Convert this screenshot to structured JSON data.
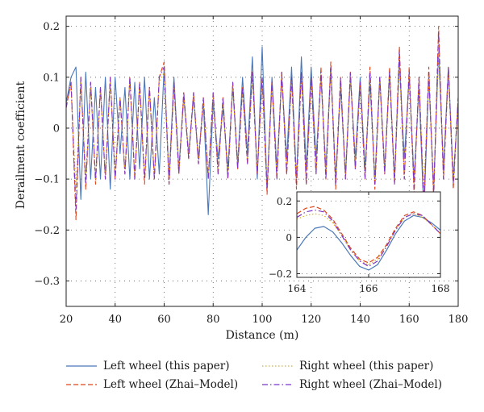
{
  "chart_data": [
    {
      "type": "line",
      "title": "",
      "xlabel": "Distance (m)",
      "ylabel": "Derailment coefficient",
      "xlim": [
        20,
        180
      ],
      "ylim": [
        -0.35,
        0.22
      ],
      "xticks": [
        20,
        40,
        60,
        80,
        100,
        120,
        140,
        160,
        180
      ],
      "xtick_labels": [
        "20",
        "40",
        "60",
        "80",
        "100",
        "120",
        "140",
        "160",
        "180"
      ],
      "yticks": [
        0.2,
        0.1,
        0,
        -0.1,
        -0.2,
        -0.3
      ],
      "ytick_labels": [
        "0.2",
        "0.1",
        "0",
        "−0.1",
        "−0.2",
        "−0.3"
      ],
      "grid": "dotted",
      "legend_position": "bottom",
      "series": [
        {
          "name": "Left wheel (this paper)",
          "color": "#4a78b8",
          "style": "solid",
          "x": [
            20,
            22,
            24,
            26,
            28,
            30,
            32,
            34,
            36,
            38,
            40,
            42,
            44,
            46,
            48,
            50,
            52,
            54,
            56,
            58,
            60,
            62,
            64,
            66,
            68,
            70,
            72,
            74,
            76,
            78,
            80,
            82,
            84,
            86,
            88,
            90,
            92,
            94,
            96,
            98,
            100,
            102,
            104,
            106,
            108,
            110,
            112,
            114,
            116,
            118,
            120,
            122,
            124,
            126,
            128,
            130,
            132,
            134,
            136,
            138,
            140,
            142,
            144,
            146,
            148,
            150,
            152,
            154,
            156,
            158,
            160,
            162,
            164,
            166,
            168,
            170,
            172,
            174,
            176,
            178,
            180
          ],
          "y": [
            0.05,
            0.1,
            0.12,
            -0.14,
            0.11,
            -0.1,
            0.08,
            -0.1,
            0.1,
            -0.12,
            0.1,
            -0.05,
            0.08,
            -0.1,
            0.09,
            -0.08,
            0.1,
            -0.1,
            0.06,
            -0.09,
            0.12,
            -0.1,
            0.1,
            -0.08,
            0.06,
            -0.05,
            0.06,
            -0.06,
            0.05,
            -0.17,
            0.05,
            -0.06,
            0.04,
            -0.08,
            0.08,
            -0.07,
            0.1,
            -0.05,
            0.14,
            -0.1,
            0.16,
            -0.12,
            0.1,
            -0.08,
            0.1,
            -0.06,
            0.12,
            -0.1,
            0.14,
            -0.08,
            0.12,
            -0.06,
            0.1,
            -0.08,
            0.12,
            -0.1,
            0.08,
            -0.09,
            0.1,
            -0.06,
            0.1,
            -0.08,
            0.09,
            -0.1,
            0.1,
            -0.08,
            0.11,
            -0.1,
            0.13,
            -0.06,
            0.1,
            -0.1,
            0.08,
            -0.17,
            0.1,
            -0.12,
            0.15,
            -0.08,
            0.12,
            -0.1,
            0.05
          ]
        },
        {
          "name": "Left wheel (Zhai–Model)",
          "color": "#e0451a",
          "style": "dashed",
          "x": [
            20,
            22,
            24,
            26,
            28,
            30,
            32,
            34,
            36,
            38,
            40,
            42,
            44,
            46,
            48,
            50,
            52,
            54,
            56,
            58,
            60,
            62,
            64,
            66,
            68,
            70,
            72,
            74,
            76,
            78,
            80,
            82,
            84,
            86,
            88,
            90,
            92,
            94,
            96,
            98,
            100,
            102,
            104,
            106,
            108,
            110,
            112,
            114,
            116,
            118,
            120,
            122,
            124,
            126,
            128,
            130,
            132,
            134,
            136,
            138,
            140,
            142,
            144,
            146,
            148,
            150,
            152,
            154,
            156,
            158,
            160,
            162,
            164,
            166,
            168,
            170,
            172,
            174,
            176,
            178,
            180
          ],
          "y": [
            0.04,
            0.09,
            -0.18,
            0.1,
            -0.12,
            0.09,
            -0.11,
            0.08,
            -0.1,
            0.1,
            -0.1,
            0.06,
            -0.09,
            0.1,
            -0.1,
            0.09,
            -0.11,
            0.08,
            -0.1,
            0.1,
            0.13,
            -0.11,
            0.09,
            -0.09,
            0.07,
            -0.06,
            0.07,
            -0.07,
            0.06,
            -0.1,
            0.07,
            -0.09,
            0.06,
            -0.1,
            0.09,
            -0.08,
            0.08,
            -0.07,
            0.11,
            -0.09,
            0.1,
            -0.13,
            0.09,
            -0.1,
            0.11,
            -0.09,
            0.1,
            -0.12,
            0.11,
            -0.11,
            0.1,
            -0.09,
            0.12,
            -0.1,
            0.13,
            -0.12,
            0.1,
            -0.1,
            0.11,
            -0.08,
            0.09,
            -0.1,
            0.12,
            -0.12,
            0.1,
            -0.09,
            0.12,
            -0.11,
            0.16,
            -0.1,
            0.12,
            -0.13,
            0.1,
            -0.16,
            0.12,
            -0.14,
            0.2,
            -0.1,
            0.12,
            -0.12,
            0.06
          ]
        },
        {
          "name": "Right wheel (this paper)",
          "color": "#d9b21f",
          "style": "dotted",
          "x": [
            20,
            22,
            24,
            26,
            28,
            30,
            32,
            34,
            36,
            38,
            40,
            42,
            44,
            46,
            48,
            50,
            52,
            54,
            56,
            58,
            60,
            62,
            64,
            66,
            68,
            70,
            72,
            74,
            76,
            78,
            80,
            82,
            84,
            86,
            88,
            90,
            92,
            94,
            96,
            98,
            100,
            102,
            104,
            106,
            108,
            110,
            112,
            114,
            116,
            118,
            120,
            122,
            124,
            126,
            128,
            130,
            132,
            134,
            136,
            138,
            140,
            142,
            144,
            146,
            148,
            150,
            152,
            154,
            156,
            158,
            160,
            162,
            164,
            166,
            168,
            170,
            172,
            174,
            176,
            178,
            180
          ],
          "y": [
            0.05,
            0.08,
            -0.12,
            0.1,
            -0.1,
            0.08,
            -0.1,
            0.08,
            -0.09,
            0.09,
            -0.09,
            0.06,
            -0.08,
            0.09,
            -0.09,
            0.08,
            -0.1,
            0.07,
            -0.09,
            0.09,
            0.11,
            -0.1,
            0.08,
            -0.08,
            0.06,
            -0.05,
            0.06,
            -0.06,
            0.05,
            -0.09,
            0.06,
            -0.08,
            0.05,
            -0.09,
            0.08,
            -0.07,
            0.07,
            -0.06,
            0.1,
            -0.08,
            0.09,
            -0.11,
            0.08,
            -0.09,
            0.1,
            -0.08,
            0.09,
            -0.1,
            0.1,
            -0.1,
            0.09,
            -0.08,
            0.1,
            -0.09,
            0.11,
            -0.1,
            0.09,
            -0.09,
            0.1,
            -0.07,
            0.08,
            -0.09,
            0.1,
            -0.1,
            0.09,
            -0.08,
            0.1,
            -0.1,
            0.12,
            -0.09,
            0.1,
            -0.11,
            0.09,
            -0.12,
            0.1,
            -0.12,
            0.15,
            -0.09,
            0.1,
            -0.1,
            0.05
          ]
        },
        {
          "name": "Right wheel (Zhai–Model)",
          "color": "#7b35c9",
          "style": "dashdot",
          "x": [
            20,
            22,
            24,
            26,
            28,
            30,
            32,
            34,
            36,
            38,
            40,
            42,
            44,
            46,
            48,
            50,
            52,
            54,
            56,
            58,
            60,
            62,
            64,
            66,
            68,
            70,
            72,
            74,
            76,
            78,
            80,
            82,
            84,
            86,
            88,
            90,
            92,
            94,
            96,
            98,
            100,
            102,
            104,
            106,
            108,
            110,
            112,
            114,
            116,
            118,
            120,
            122,
            124,
            126,
            128,
            130,
            132,
            134,
            136,
            138,
            140,
            142,
            144,
            146,
            148,
            150,
            152,
            154,
            156,
            158,
            160,
            162,
            164,
            166,
            168,
            170,
            172,
            174,
            176,
            178,
            180
          ],
          "y": [
            0.04,
            0.09,
            -0.16,
            0.1,
            -0.11,
            0.09,
            -0.1,
            0.08,
            -0.1,
            0.1,
            -0.1,
            0.06,
            -0.09,
            0.1,
            -0.1,
            0.09,
            -0.1,
            0.08,
            -0.1,
            0.1,
            0.12,
            -0.11,
            0.09,
            -0.09,
            0.07,
            -0.06,
            0.07,
            -0.07,
            0.06,
            -0.1,
            0.07,
            -0.09,
            0.06,
            -0.1,
            0.09,
            -0.08,
            0.08,
            -0.07,
            0.11,
            -0.09,
            0.1,
            -0.12,
            0.09,
            -0.1,
            0.11,
            -0.09,
            0.1,
            -0.11,
            0.11,
            -0.11,
            0.1,
            -0.09,
            0.11,
            -0.1,
            0.12,
            -0.11,
            0.1,
            -0.1,
            0.11,
            -0.08,
            0.09,
            -0.1,
            0.11,
            -0.11,
            0.1,
            -0.09,
            0.11,
            -0.11,
            0.15,
            -0.1,
            0.11,
            -0.12,
            0.1,
            -0.15,
            0.11,
            -0.13,
            0.19,
            -0.1,
            0.12,
            -0.11,
            0.06
          ]
        }
      ]
    },
    {
      "type": "line",
      "title": "",
      "inset": true,
      "xlim": [
        164,
        168
      ],
      "ylim": [
        -0.22,
        0.25
      ],
      "xticks": [
        164,
        166,
        168
      ],
      "xtick_labels": [
        "164",
        "166",
        "168"
      ],
      "yticks": [
        0.2,
        0,
        -0.2
      ],
      "ytick_labels": [
        "0.2",
        "0",
        "−0.2"
      ],
      "grid": "dotted",
      "series": [
        {
          "name": "Left wheel (this paper)",
          "color": "#4a78b8",
          "style": "solid",
          "x": [
            164,
            164.25,
            164.5,
            164.75,
            165,
            165.25,
            165.5,
            165.75,
            166,
            166.25,
            166.5,
            166.75,
            167,
            167.25,
            167.5,
            167.75,
            168
          ],
          "y": [
            -0.07,
            0.0,
            0.05,
            0.06,
            0.03,
            -0.03,
            -0.1,
            -0.16,
            -0.18,
            -0.15,
            -0.07,
            0.02,
            0.09,
            0.12,
            0.11,
            0.08,
            0.04
          ]
        },
        {
          "name": "Left wheel (Zhai–Model)",
          "color": "#e0451a",
          "style": "dashed",
          "x": [
            164,
            164.25,
            164.5,
            164.75,
            165,
            165.25,
            165.5,
            165.75,
            166,
            166.25,
            166.5,
            166.75,
            167,
            167.25,
            167.5,
            167.75,
            168
          ],
          "y": [
            0.13,
            0.16,
            0.17,
            0.15,
            0.1,
            0.02,
            -0.06,
            -0.12,
            -0.14,
            -0.11,
            -0.04,
            0.05,
            0.12,
            0.14,
            0.12,
            0.07,
            0.02
          ]
        },
        {
          "name": "Right wheel (this paper)",
          "color": "#d9b21f",
          "style": "dotted",
          "x": [
            164,
            164.25,
            164.5,
            164.75,
            165,
            165.25,
            165.5,
            165.75,
            166,
            166.25,
            166.5,
            166.75,
            167,
            167.25,
            167.5,
            167.75,
            168
          ],
          "y": [
            0.1,
            0.12,
            0.13,
            0.12,
            0.08,
            0.01,
            -0.07,
            -0.13,
            -0.15,
            -0.12,
            -0.05,
            0.04,
            0.11,
            0.13,
            0.11,
            0.07,
            0.02
          ]
        },
        {
          "name": "Right wheel (Zhai–Model)",
          "color": "#7b35c9",
          "style": "dashdot",
          "x": [
            164,
            164.25,
            164.5,
            164.75,
            165,
            165.25,
            165.5,
            165.75,
            166,
            166.25,
            166.5,
            166.75,
            167,
            167.25,
            167.5,
            167.75,
            168
          ],
          "y": [
            0.11,
            0.14,
            0.15,
            0.14,
            0.09,
            0.01,
            -0.07,
            -0.13,
            -0.16,
            -0.13,
            -0.05,
            0.04,
            0.11,
            0.13,
            0.12,
            0.07,
            0.02
          ]
        }
      ]
    }
  ]
}
